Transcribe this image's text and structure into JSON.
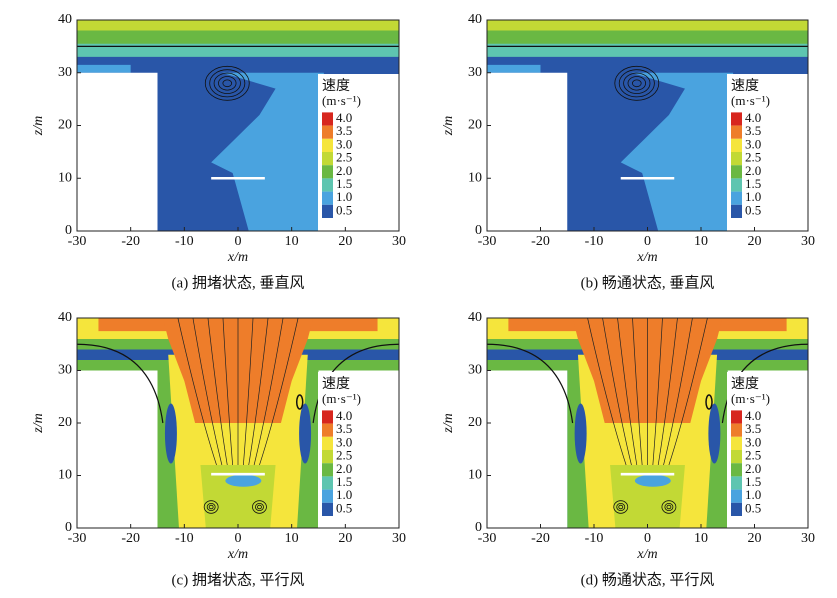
{
  "chart_data": [
    {
      "type": "contour",
      "wind": "vertical",
      "caption": "(a) 拥堵状态, 垂直风",
      "xlabel": "x/m",
      "ylabel": "z/m",
      "xlim": [
        -30,
        30
      ],
      "ylim": [
        0,
        40
      ],
      "xticks": [
        -30,
        -20,
        -10,
        0,
        10,
        20,
        30
      ],
      "yticks": [
        0,
        10,
        20,
        30,
        40
      ],
      "legend": {
        "title": "速度",
        "unit": "(m·s⁻¹)",
        "levels": [
          {
            "value": 4,
            "label": "4.0"
          },
          {
            "value": 3.5,
            "label": "3.5"
          },
          {
            "value": 3,
            "label": "3.0"
          },
          {
            "value": 2.5,
            "label": "2.5"
          },
          {
            "value": 2,
            "label": "2.0"
          },
          {
            "value": 1.5,
            "label": "1.5"
          },
          {
            "value": 1,
            "label": "1.0"
          },
          {
            "value": 0.5,
            "label": "0.5"
          }
        ],
        "colors": [
          "#d7261e",
          "#ee7d2a",
          "#f5e53c",
          "#c2d935",
          "#6ab843",
          "#5ec5b0",
          "#4aa3df",
          "#2956a8"
        ]
      }
    },
    {
      "type": "contour",
      "wind": "vertical",
      "caption": "(b) 畅通状态, 垂直风",
      "xlabel": "x/m",
      "ylabel": "z/m",
      "xlim": [
        -30,
        30
      ],
      "ylim": [
        0,
        40
      ],
      "xticks": [
        -30,
        -20,
        -10,
        0,
        10,
        20,
        30
      ],
      "yticks": [
        0,
        10,
        20,
        30,
        40
      ],
      "legend": {
        "title": "速度",
        "unit": "(m·s⁻¹)",
        "levels": [
          {
            "value": 4,
            "label": "4.0"
          },
          {
            "value": 3.5,
            "label": "3.5"
          },
          {
            "value": 3,
            "label": "3.0"
          },
          {
            "value": 2.5,
            "label": "2.5"
          },
          {
            "value": 2,
            "label": "2.0"
          },
          {
            "value": 1.5,
            "label": "1.5"
          },
          {
            "value": 1,
            "label": "1.0"
          },
          {
            "value": 0.5,
            "label": "0.5"
          }
        ],
        "colors": [
          "#d7261e",
          "#ee7d2a",
          "#f5e53c",
          "#c2d935",
          "#6ab843",
          "#5ec5b0",
          "#4aa3df",
          "#2956a8"
        ]
      }
    },
    {
      "type": "contour",
      "wind": "parallel",
      "caption": "(c) 拥堵状态, 平行风",
      "xlabel": "x/m",
      "ylabel": "z/m",
      "xlim": [
        -30,
        30
      ],
      "ylim": [
        0,
        40
      ],
      "xticks": [
        -30,
        -20,
        -10,
        0,
        10,
        20,
        30
      ],
      "yticks": [
        0,
        10,
        20,
        30,
        40
      ],
      "legend": {
        "title": "速度",
        "unit": "(m·s⁻¹)",
        "levels": [
          {
            "value": 4,
            "label": "4.0"
          },
          {
            "value": 3.5,
            "label": "3.5"
          },
          {
            "value": 3,
            "label": "3.0"
          },
          {
            "value": 2.5,
            "label": "2.5"
          },
          {
            "value": 2,
            "label": "2.0"
          },
          {
            "value": 1.5,
            "label": "1.5"
          },
          {
            "value": 1,
            "label": "1.0"
          },
          {
            "value": 0.5,
            "label": "0.5"
          }
        ],
        "colors": [
          "#d7261e",
          "#ee7d2a",
          "#f5e53c",
          "#c2d935",
          "#6ab843",
          "#5ec5b0",
          "#4aa3df",
          "#2956a8"
        ]
      }
    },
    {
      "type": "contour",
      "wind": "parallel",
      "caption": "(d) 畅通状态, 平行风",
      "xlabel": "x/m",
      "ylabel": "z/m",
      "xlim": [
        -30,
        30
      ],
      "ylim": [
        0,
        40
      ],
      "xticks": [
        -30,
        -20,
        -10,
        0,
        10,
        20,
        30
      ],
      "yticks": [
        0,
        10,
        20,
        30,
        40
      ],
      "legend": {
        "title": "速度",
        "unit": "(m·s⁻¹)",
        "levels": [
          {
            "value": 4,
            "label": "4.0"
          },
          {
            "value": 3.5,
            "label": "3.5"
          },
          {
            "value": 3,
            "label": "3.0"
          },
          {
            "value": 2.5,
            "label": "2.5"
          },
          {
            "value": 2,
            "label": "2.0"
          },
          {
            "value": 1.5,
            "label": "1.5"
          },
          {
            "value": 1,
            "label": "1.0"
          },
          {
            "value": 0.5,
            "label": "0.5"
          }
        ],
        "colors": [
          "#d7261e",
          "#ee7d2a",
          "#f5e53c",
          "#c2d935",
          "#6ab843",
          "#5ec5b0",
          "#4aa3df",
          "#2956a8"
        ]
      }
    }
  ]
}
